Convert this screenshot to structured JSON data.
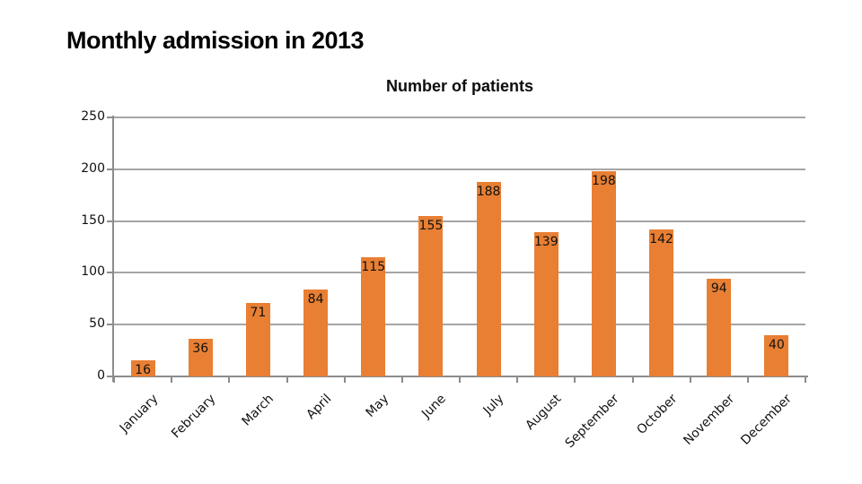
{
  "slide": {
    "title": "Monthly admission in 2013"
  },
  "chart": {
    "title": "Number of patients"
  },
  "chart_data": {
    "type": "bar",
    "title": "Number of patients",
    "categories": [
      "January",
      "February",
      "March",
      "April",
      "May",
      "June",
      "July",
      "August",
      "September",
      "October",
      "November",
      "December"
    ],
    "values": [
      16,
      36,
      71,
      84,
      115,
      155,
      188,
      139,
      198,
      142,
      94,
      40
    ],
    "xlabel": "",
    "ylabel": "",
    "ylim": [
      0,
      250
    ],
    "yticks": [
      0,
      50,
      100,
      150,
      200,
      250
    ],
    "grid": true,
    "legend_position": "none",
    "bar_color": "#E87F33",
    "gridline_color": "#A6A6A6",
    "axis_color": "#8C8C8C",
    "label_color": "#111111",
    "background_color": "#FFFFFF"
  }
}
